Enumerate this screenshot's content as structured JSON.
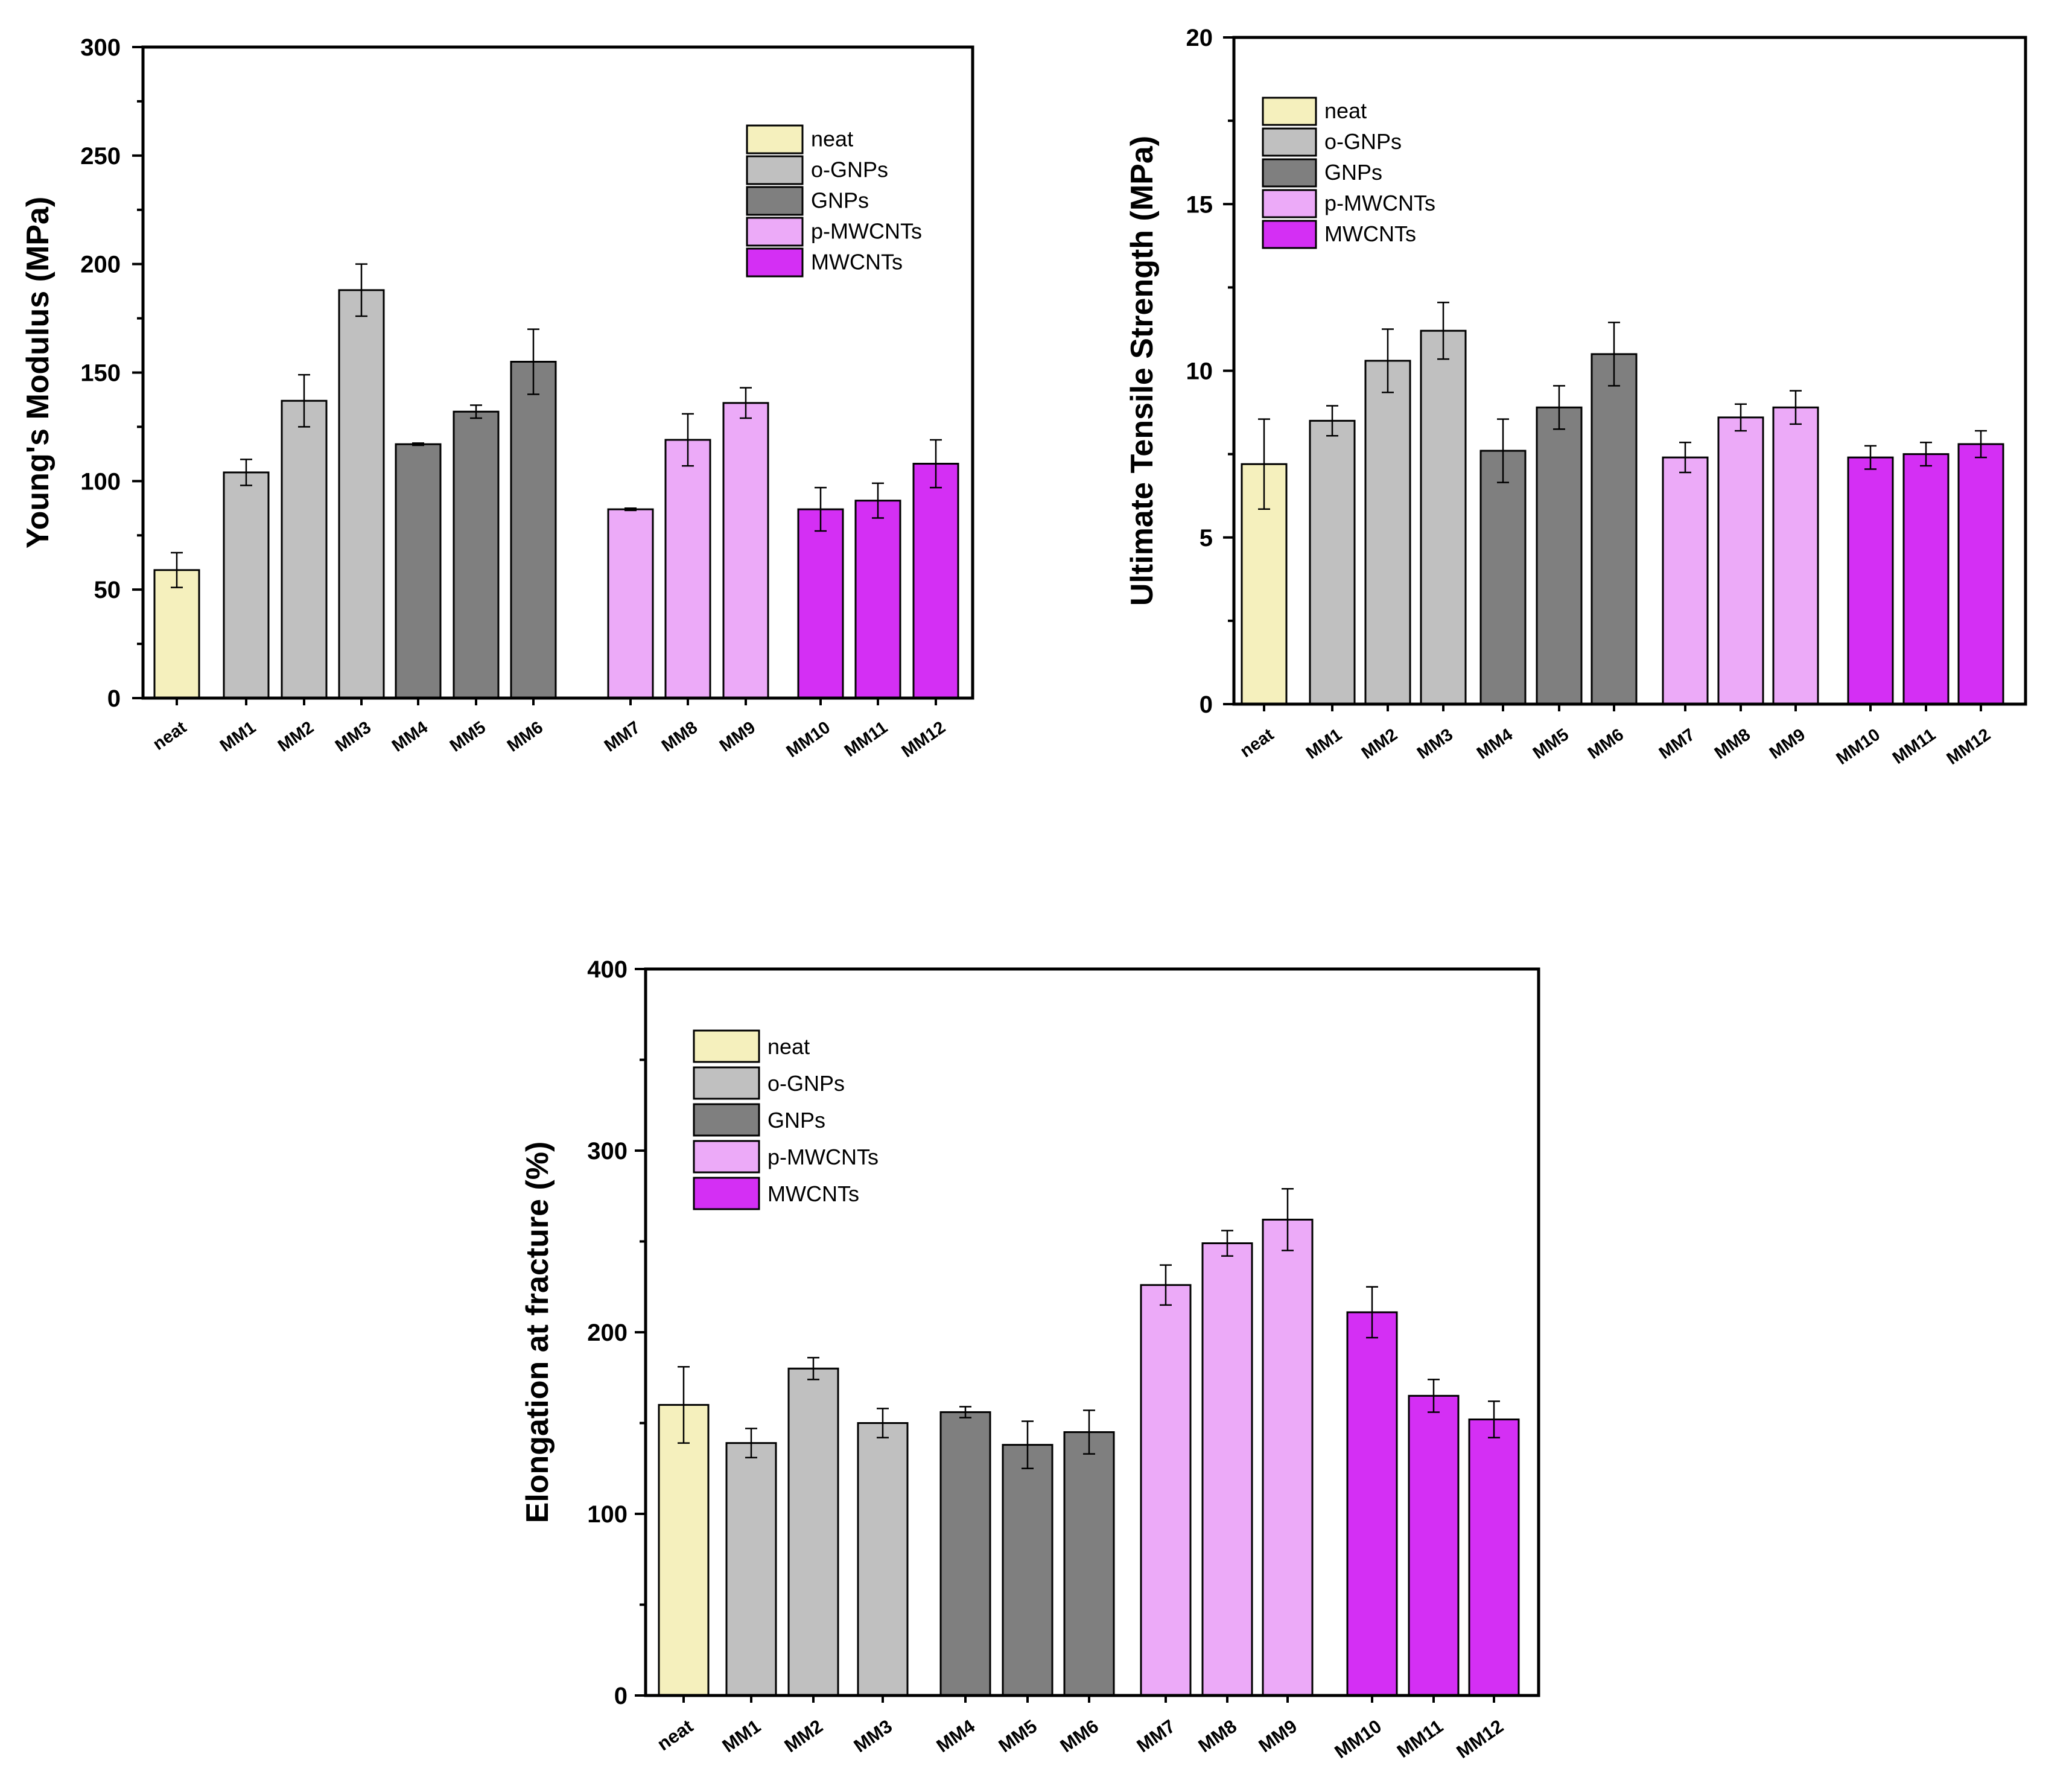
{
  "chart_data": [
    {
      "type": "bar",
      "title": "",
      "xlabel": "",
      "ylabel": "Young's Modulus (MPa)",
      "ylim": [
        0,
        300
      ],
      "yticks": [
        0,
        50,
        100,
        150,
        200,
        250,
        300
      ],
      "ytick_labels": [
        "0",
        "50",
        "100",
        "150",
        "200",
        "250",
        "300"
      ],
      "categories": [
        "neat",
        "MM1",
        "MM2",
        "MM3",
        "MM4",
        "MM5",
        "MM6",
        "MM7",
        "MM8",
        "MM9",
        "MM10",
        "MM11",
        "MM12"
      ],
      "values": [
        59,
        104,
        137,
        188,
        117,
        132,
        155,
        87,
        119,
        136,
        87,
        91,
        108
      ],
      "errors": [
        8,
        6,
        12,
        12,
        0.5,
        3,
        15,
        0.5,
        12,
        7,
        10,
        8,
        11
      ],
      "groups": [
        "neat",
        "o-GNPs",
        "o-GNPs",
        "o-GNPs",
        "GNPs",
        "GNPs",
        "GNPs",
        "p-MWCNTs",
        "p-MWCNTs",
        "p-MWCNTs",
        "MWCNTs",
        "MWCNTs",
        "MWCNTs"
      ],
      "legend": [
        "neat",
        "o-GNPs",
        "GNPs",
        "p-MWCNTs",
        "MWCNTs"
      ],
      "legend_position": "top-right"
    },
    {
      "type": "bar",
      "title": "",
      "xlabel": "",
      "ylabel": "Ultimate Tensile Strength (MPa)",
      "ylim": [
        0,
        20
      ],
      "yticks": [
        0,
        5,
        10,
        15,
        20
      ],
      "ytick_labels": [
        "0",
        "5",
        "10",
        "15",
        "20"
      ],
      "categories": [
        "neat",
        "MM1",
        "MM2",
        "MM3",
        "MM4",
        "MM5",
        "MM6",
        "MM7",
        "MM8",
        "MM9",
        "MM10",
        "MM11",
        "MM12"
      ],
      "values": [
        7.2,
        8.5,
        10.3,
        11.2,
        7.6,
        8.9,
        10.5,
        7.4,
        8.6,
        8.9,
        7.4,
        7.5,
        7.8
      ],
      "errors": [
        1.35,
        0.45,
        0.95,
        0.85,
        0.95,
        0.65,
        0.95,
        0.45,
        0.4,
        0.5,
        0.35,
        0.35,
        0.4
      ],
      "groups": [
        "neat",
        "o-GNPs",
        "o-GNPs",
        "o-GNPs",
        "GNPs",
        "GNPs",
        "GNPs",
        "p-MWCNTs",
        "p-MWCNTs",
        "p-MWCNTs",
        "MWCNTs",
        "MWCNTs",
        "MWCNTs"
      ],
      "legend": [
        "neat",
        "o-GNPs",
        "GNPs",
        "p-MWCNTs",
        "MWCNTs"
      ],
      "legend_position": "top-left"
    },
    {
      "type": "bar",
      "title": "",
      "xlabel": "",
      "ylabel": "Elongation at fracture (%)",
      "ylim": [
        0,
        400
      ],
      "yticks": [
        0,
        100,
        200,
        300,
        400
      ],
      "ytick_labels": [
        "0",
        "100",
        "200",
        "300",
        "400"
      ],
      "categories": [
        "neat",
        "MM1",
        "MM2",
        "MM3",
        "MM4",
        "MM5",
        "MM6",
        "MM7",
        "MM8",
        "MM9",
        "MM10",
        "MM11",
        "MM12"
      ],
      "values": [
        160,
        139,
        180,
        150,
        156,
        138,
        145,
        226,
        249,
        262,
        211,
        165,
        152
      ],
      "errors": [
        21,
        8,
        6,
        8,
        3,
        13,
        12,
        11,
        7,
        17,
        14,
        9,
        10
      ],
      "groups": [
        "neat",
        "o-GNPs",
        "o-GNPs",
        "o-GNPs",
        "GNPs",
        "GNPs",
        "GNPs",
        "p-MWCNTs",
        "p-MWCNTs",
        "p-MWCNTs",
        "MWCNTs",
        "MWCNTs",
        "MWCNTs"
      ],
      "legend": [
        "neat",
        "o-GNPs",
        "GNPs",
        "p-MWCNTs",
        "MWCNTs"
      ],
      "legend_position": "top-left"
    }
  ],
  "colors": {
    "neat": "#f5f0bd",
    "o-GNPs": "#c0c0c0",
    "GNPs": "#7f7f7f",
    "p-MWCNTs": "#ecaaf8",
    "MWCNTs": "#d42ff4"
  }
}
